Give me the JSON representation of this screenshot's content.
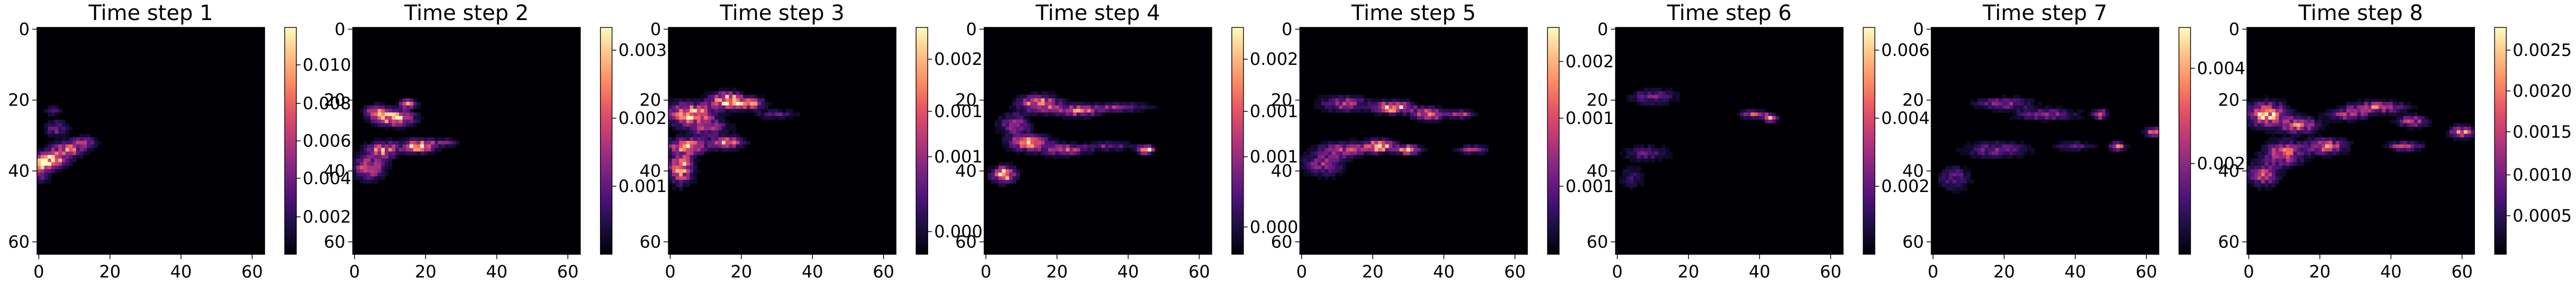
{
  "chart_data": {
    "type": "heatmap",
    "colormap": "magma",
    "grid": false,
    "panels": [
      {
        "title": "Time step 1",
        "x_ticks": [
          "0",
          "20",
          "40",
          "60"
        ],
        "y_ticks": [
          "0",
          "20",
          "40",
          "60"
        ],
        "colorbar_ticks": [
          "0.002",
          "0.004",
          "0.006",
          "0.008",
          "0.010"
        ],
        "colorbar_fracs": [
          0.165,
          0.335,
          0.5,
          0.665,
          0.835
        ],
        "vmax": 0.012,
        "blobs": [
          [
            3,
            37,
            4,
            2,
            1.0
          ],
          [
            8,
            34,
            4,
            2,
            0.6
          ],
          [
            13,
            32,
            3,
            1.5,
            0.5
          ],
          [
            5,
            28,
            3,
            2,
            0.35
          ],
          [
            4,
            23,
            2,
            1,
            0.3
          ],
          [
            1,
            40,
            2,
            3,
            0.4
          ]
        ]
      },
      {
        "title": "Time step 2",
        "x_ticks": [
          "0",
          "20",
          "40",
          "60"
        ],
        "y_ticks": [
          "0",
          "20",
          "40",
          "60"
        ],
        "colorbar_ticks": [
          "0.001",
          "0.002",
          "0.003"
        ],
        "colorbar_fracs": [
          0.3,
          0.6,
          0.9
        ],
        "vmax": 0.0033,
        "blobs": [
          [
            11,
            25,
            5,
            2,
            0.9
          ],
          [
            15,
            21,
            2,
            1,
            0.9
          ],
          [
            18,
            33,
            4,
            1.5,
            1.0
          ],
          [
            8,
            34,
            4,
            2,
            0.7
          ],
          [
            4,
            39,
            4,
            3,
            0.6
          ],
          [
            25,
            32,
            4,
            1,
            0.3
          ],
          [
            6,
            23,
            3,
            1.5,
            0.5
          ]
        ]
      },
      {
        "title": "Time step 3",
        "x_ticks": [
          "0",
          "20",
          "40",
          "60"
        ],
        "y_ticks": [
          "0",
          "20",
          "40",
          "60"
        ],
        "colorbar_ticks": [
          "0.000",
          "0.001",
          "0.001",
          "0.002"
        ],
        "colorbar_fracs": [
          0.1,
          0.43,
          0.63,
          0.86
        ],
        "vmax": 0.0028,
        "blobs": [
          [
            6,
            24,
            6,
            3,
            0.8
          ],
          [
            16,
            20,
            4,
            2,
            0.9
          ],
          [
            22,
            21,
            4,
            1.5,
            0.7
          ],
          [
            5,
            33,
            5,
            2,
            0.7
          ],
          [
            16,
            32,
            4,
            1.5,
            0.7
          ],
          [
            3,
            39,
            3,
            4,
            0.8
          ],
          [
            30,
            24,
            5,
            1,
            0.3
          ],
          [
            11,
            28,
            5,
            2,
            0.4
          ]
        ]
      },
      {
        "title": "Time step 4",
        "x_ticks": [
          "0",
          "20",
          "40",
          "60"
        ],
        "y_ticks": [
          "0",
          "20",
          "40",
          "60"
        ],
        "colorbar_ticks": [
          "0.000",
          "0.001",
          "0.001",
          "0.002"
        ],
        "colorbar_fracs": [
          0.12,
          0.43,
          0.63,
          0.86
        ],
        "vmax": 0.0028,
        "blobs": [
          [
            5,
            41,
            3,
            2,
            0.9
          ],
          [
            15,
            21,
            5,
            2,
            0.8
          ],
          [
            26,
            23,
            6,
            1.5,
            0.6
          ],
          [
            12,
            32,
            5,
            2,
            0.7
          ],
          [
            22,
            34,
            6,
            1.5,
            0.5
          ],
          [
            38,
            22,
            7,
            1,
            0.4
          ],
          [
            35,
            33,
            6,
            1,
            0.35
          ],
          [
            45,
            34,
            2,
            1,
            1.0
          ],
          [
            8,
            27,
            4,
            3,
            0.4
          ]
        ]
      },
      {
        "title": "Time step 5",
        "x_ticks": [
          "0",
          "20",
          "40",
          "60"
        ],
        "y_ticks": [
          "0",
          "20",
          "40",
          "60"
        ],
        "colorbar_ticks": [
          "0.001",
          "0.001",
          "0.002"
        ],
        "colorbar_fracs": [
          0.3,
          0.6,
          0.85
        ],
        "vmax": 0.0028,
        "blobs": [
          [
            26,
            22,
            5,
            1.5,
            0.9
          ],
          [
            36,
            24,
            4,
            1.5,
            0.7
          ],
          [
            22,
            33,
            4,
            1.5,
            0.9
          ],
          [
            30,
            34,
            3,
            1,
            1.0
          ],
          [
            12,
            34,
            6,
            2,
            0.5
          ],
          [
            6,
            38,
            5,
            3,
            0.4
          ],
          [
            12,
            21,
            6,
            2,
            0.45
          ],
          [
            45,
            24,
            3,
            1,
            0.5
          ],
          [
            48,
            34,
            4,
            1,
            0.4
          ]
        ]
      },
      {
        "title": "Time step 6",
        "x_ticks": [
          "0",
          "20",
          "40",
          "60"
        ],
        "y_ticks": [
          "0",
          "20",
          "40",
          "60"
        ],
        "colorbar_ticks": [
          "0.002",
          "0.004",
          "0.006"
        ],
        "colorbar_fracs": [
          0.3,
          0.6,
          0.9
        ],
        "vmax": 0.0068,
        "blobs": [
          [
            43,
            25,
            1.5,
            1,
            1.0
          ],
          [
            38,
            24,
            3,
            1,
            0.6
          ],
          [
            10,
            19,
            6,
            2,
            0.3
          ],
          [
            8,
            35,
            6,
            2,
            0.25
          ],
          [
            4,
            42,
            3,
            3,
            0.2
          ]
        ]
      },
      {
        "title": "Time step 7",
        "x_ticks": [
          "0",
          "20",
          "40",
          "60"
        ],
        "y_ticks": [
          "0",
          "20",
          "40",
          "60"
        ],
        "colorbar_ticks": [
          "0.002",
          "0.004"
        ],
        "colorbar_fracs": [
          0.4,
          0.82
        ],
        "vmax": 0.0048,
        "blobs": [
          [
            47,
            24,
            1.5,
            1,
            1.0
          ],
          [
            62,
            29,
            2,
            1,
            0.8
          ],
          [
            52,
            33,
            2,
            1,
            0.6
          ],
          [
            20,
            21,
            7,
            1.5,
            0.4
          ],
          [
            32,
            24,
            8,
            1.5,
            0.35
          ],
          [
            18,
            34,
            8,
            2,
            0.35
          ],
          [
            6,
            42,
            4,
            3,
            0.3
          ],
          [
            40,
            33,
            5,
            1,
            0.3
          ]
        ]
      },
      {
        "title": "Time step 8",
        "x_ticks": [
          "0",
          "20",
          "40",
          "60"
        ],
        "y_ticks": [
          "0",
          "20",
          "40",
          "60"
        ],
        "colorbar_ticks": [
          "0.0005",
          "0.0010",
          "0.0015",
          "0.0020",
          "0.0025"
        ],
        "colorbar_fracs": [
          0.17,
          0.35,
          0.54,
          0.72,
          0.9
        ],
        "vmax": 0.0027,
        "blobs": [
          [
            5,
            24,
            5,
            3,
            0.8
          ],
          [
            14,
            27,
            5,
            2,
            0.6
          ],
          [
            10,
            35,
            5,
            3,
            0.6
          ],
          [
            22,
            33,
            5,
            2,
            0.6
          ],
          [
            36,
            22,
            7,
            1.5,
            0.55
          ],
          [
            46,
            26,
            4,
            1.5,
            0.5
          ],
          [
            60,
            29,
            3,
            1.5,
            0.7
          ],
          [
            44,
            33,
            4,
            1,
            0.6
          ],
          [
            4,
            41,
            4,
            3,
            0.5
          ],
          [
            28,
            24,
            5,
            1.5,
            0.45
          ]
        ]
      }
    ]
  }
}
